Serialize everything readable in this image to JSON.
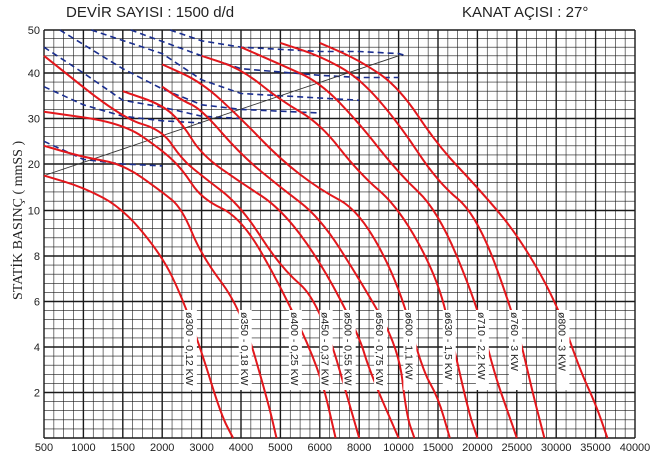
{
  "header": {
    "speed": "DEVİR SAYISI : 1500 d/d",
    "angle": "KANAT AÇISI : 27°"
  },
  "chart_data": {
    "type": "line",
    "title": "DEVİR SAYISI : 1500 d/d",
    "subtitle": "KANAT AÇISI : 27°",
    "xlabel": "",
    "ylabel": "STATİK BASINÇ  ( mmSS )",
    "x_ticks": [
      "500",
      "1000",
      "1500",
      "2000",
      "3000",
      "4000",
      "5000",
      "6000",
      "8000",
      "10000",
      "15000",
      "20000",
      "25000",
      "30000",
      "35000",
      "40000"
    ],
    "y_ticks": [
      "2",
      "4",
      "6",
      "8",
      "10",
      "20",
      "30",
      "40",
      "50"
    ],
    "grid": true,
    "series": [
      {
        "name": "ø300 - 0,12 KW",
        "points": [
          [
            500,
            17.5
          ],
          [
            1000,
            15
          ],
          [
            1500,
            10.5
          ],
          [
            2000,
            8
          ],
          [
            2500,
            6.2
          ],
          [
            3000,
            3.8
          ],
          [
            3500,
            1.0
          ],
          [
            3800,
            0
          ]
        ]
      },
      {
        "name": "ø350 - 0,18 KW",
        "points": [
          [
            500,
            24
          ],
          [
            1000,
            21.5
          ],
          [
            1500,
            20
          ],
          [
            2000,
            14
          ],
          [
            2500,
            10.5
          ],
          [
            3000,
            8
          ],
          [
            4000,
            5.7
          ],
          [
            4700,
            1.5
          ],
          [
            4900,
            0
          ]
        ]
      },
      {
        "name": "ø400 - 0,25 KW",
        "points": [
          [
            500,
            31.5
          ],
          [
            1500,
            29
          ],
          [
            2000,
            23
          ],
          [
            2500,
            19
          ],
          [
            3000,
            12.5
          ],
          [
            4000,
            9.7
          ],
          [
            5000,
            6.7
          ],
          [
            6000,
            3
          ],
          [
            6800,
            0
          ]
        ]
      },
      {
        "name": "ø450 - 0,37 KW",
        "points": [
          [
            500,
            44
          ],
          [
            1500,
            30
          ],
          [
            2000,
            27.5
          ],
          [
            2500,
            21
          ],
          [
            3000,
            17.5
          ],
          [
            4000,
            11
          ],
          [
            5000,
            7.5
          ],
          [
            6000,
            6
          ],
          [
            8000,
            0
          ]
        ]
      },
      {
        "name": "ø500 - 0,55 KW",
        "points": [
          [
            1500,
            36
          ],
          [
            2000,
            33
          ],
          [
            2500,
            29
          ],
          [
            3000,
            22
          ],
          [
            4000,
            16
          ],
          [
            5000,
            10.5
          ],
          [
            6000,
            7.8
          ],
          [
            8000,
            4.5
          ],
          [
            8500,
            3
          ],
          [
            10000,
            0
          ]
        ]
      },
      {
        "name": "ø560 - 0,75 KW",
        "points": [
          [
            2000,
            37
          ],
          [
            2500,
            34
          ],
          [
            3000,
            32
          ],
          [
            4000,
            22
          ],
          [
            5000,
            15
          ],
          [
            6000,
            9.7
          ],
          [
            8000,
            7
          ],
          [
            10000,
            4
          ],
          [
            11000,
            1
          ],
          [
            12000,
            0
          ]
        ]
      },
      {
        "name": "ø600 - 1,1 KW",
        "points": [
          [
            2000,
            42
          ],
          [
            3000,
            38
          ],
          [
            4000,
            30
          ],
          [
            5000,
            21
          ],
          [
            6000,
            14.5
          ],
          [
            8000,
            10
          ],
          [
            10000,
            6.8
          ],
          [
            13000,
            3
          ],
          [
            15000,
            1.8
          ],
          [
            16500,
            0
          ]
        ]
      },
      {
        "name": "ø630 - 1,5 KW",
        "points": [
          [
            3000,
            44
          ],
          [
            4000,
            41
          ],
          [
            5000,
            34
          ],
          [
            6000,
            29
          ],
          [
            8000,
            18
          ],
          [
            10000,
            10.7
          ],
          [
            15000,
            7
          ],
          [
            17000,
            4
          ],
          [
            19000,
            1
          ],
          [
            20000,
            0
          ]
        ]
      },
      {
        "name": "ø710 - 2,2 KW",
        "points": [
          [
            4000,
            46
          ],
          [
            5000,
            42
          ],
          [
            6000,
            38
          ],
          [
            8000,
            29
          ],
          [
            10000,
            18
          ],
          [
            15000,
            10
          ],
          [
            20000,
            5.8
          ],
          [
            22000,
            3
          ],
          [
            24000,
            1
          ],
          [
            25000,
            0
          ]
        ]
      },
      {
        "name": "ø760 - 3 KW",
        "points": [
          [
            5000,
            47
          ],
          [
            6000,
            44
          ],
          [
            8000,
            39
          ],
          [
            10000,
            29
          ],
          [
            15000,
            16
          ],
          [
            20000,
            9.8
          ],
          [
            25000,
            5
          ],
          [
            27000,
            2
          ],
          [
            28500,
            0
          ]
        ]
      },
      {
        "name": "ø800 - 3 KW",
        "points": [
          [
            6000,
            47
          ],
          [
            8000,
            43
          ],
          [
            10000,
            37
          ],
          [
            15000,
            24
          ],
          [
            20000,
            15
          ],
          [
            25000,
            9
          ],
          [
            30000,
            6
          ],
          [
            33000,
            3
          ],
          [
            35000,
            1.5
          ],
          [
            36500,
            0
          ]
        ]
      }
    ],
    "dashed_series": [
      {
        "points": [
          [
            500,
            25
          ],
          [
            1000,
            21
          ],
          [
            1500,
            20
          ],
          [
            2000,
            19.6
          ]
        ]
      },
      {
        "points": [
          [
            500,
            37
          ],
          [
            1000,
            33
          ],
          [
            1500,
            30.5
          ],
          [
            2000,
            29.5
          ],
          [
            3000,
            29
          ]
        ]
      },
      {
        "points": [
          [
            500,
            46
          ],
          [
            1000,
            40
          ],
          [
            1500,
            34
          ],
          [
            2000,
            32.5
          ],
          [
            2500,
            31.5
          ],
          [
            3000,
            30.5
          ],
          [
            4000,
            30
          ]
        ]
      },
      {
        "points": [
          [
            700,
            50
          ],
          [
            1500,
            41
          ],
          [
            2000,
            36.5
          ],
          [
            3000,
            33
          ],
          [
            4000,
            32
          ],
          [
            6000,
            31.2
          ]
        ]
      },
      {
        "points": [
          [
            1100,
            50
          ],
          [
            2000,
            44.5
          ],
          [
            3000,
            38.5
          ],
          [
            4000,
            35.5
          ],
          [
            6000,
            34.5
          ],
          [
            8000,
            34
          ]
        ]
      },
      {
        "points": [
          [
            1600,
            50
          ],
          [
            3000,
            44
          ],
          [
            4000,
            41
          ],
          [
            6000,
            39.5
          ],
          [
            8000,
            39
          ],
          [
            10000,
            39
          ]
        ]
      },
      {
        "points": [
          [
            2200,
            50
          ],
          [
            3000,
            47.5
          ],
          [
            4000,
            46
          ],
          [
            6000,
            45
          ],
          [
            8000,
            45
          ],
          [
            10000,
            44.5
          ],
          [
            11000,
            44
          ]
        ]
      }
    ],
    "reference_line": {
      "points": [
        [
          500,
          17.5
        ],
        [
          10000,
          44
        ]
      ]
    },
    "colors": {
      "curve": "#e3171c",
      "dashed": "#1a2e8f",
      "grid": "#1a1a1a"
    }
  }
}
